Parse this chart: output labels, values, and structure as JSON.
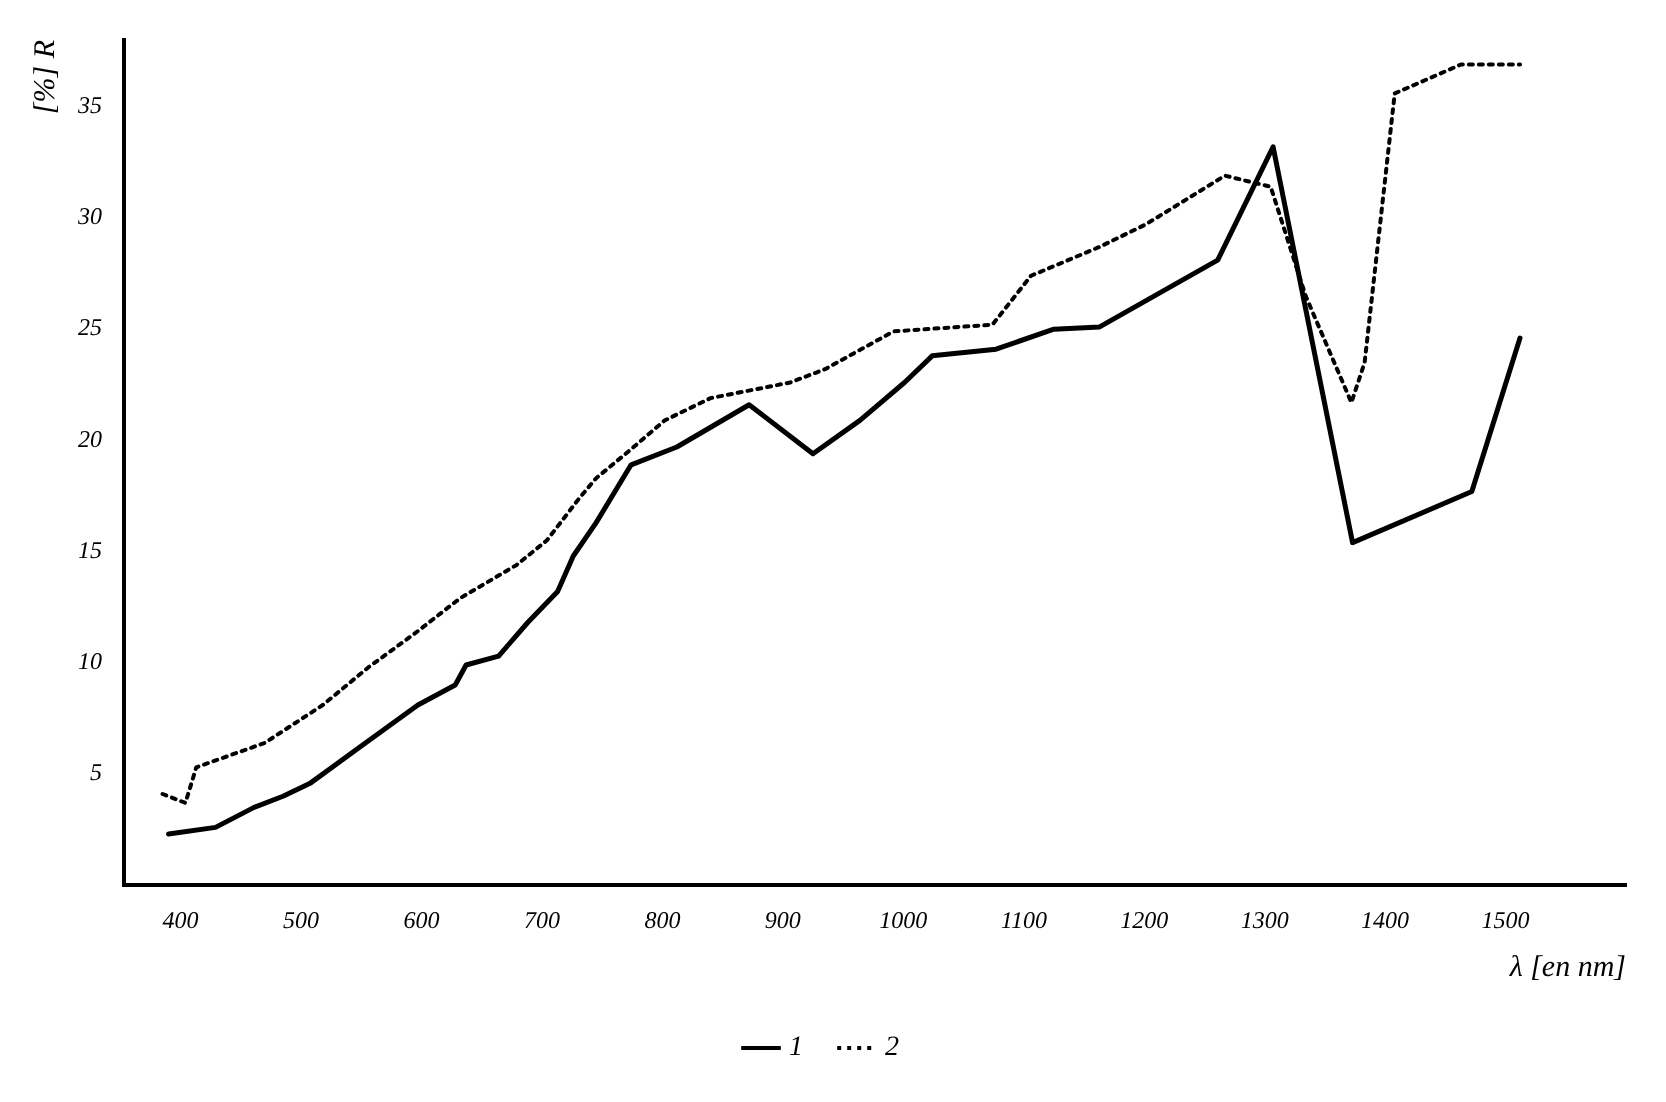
{
  "chart_data": {
    "type": "line",
    "xlabel": "λ [en nm]",
    "ylabel": "[%] R",
    "xlim": [
      353,
      1600
    ],
    "xticks": [
      400,
      500,
      600,
      700,
      800,
      900,
      1000,
      1100,
      1200,
      1300,
      1400,
      1500
    ],
    "ylim": [
      0,
      38
    ],
    "yticks": [
      5,
      10,
      15,
      20,
      25,
      30,
      35
    ],
    "grid": false,
    "legend": "bottom",
    "marker": "none",
    "series": [
      {
        "name": "1",
        "color": "#000000",
        "line_style": "solid",
        "x": [
          390,
          429,
          461,
          485,
          508,
          546,
          597,
          628,
          637,
          664,
          688,
          713,
          726,
          745,
          774,
          812,
          872,
          925,
          964,
          1001,
          1024,
          1077,
          1125,
          1163,
          1261,
          1307,
          1373,
          1472,
          1512
        ],
        "values": [
          2.3,
          2.6,
          3.5,
          4.0,
          4.6,
          6.1,
          8.1,
          9.0,
          9.9,
          10.3,
          11.8,
          13.2,
          14.8,
          16.3,
          18.9,
          19.7,
          21.6,
          19.4,
          20.9,
          22.6,
          23.8,
          24.1,
          25.0,
          25.1,
          28.1,
          33.2,
          15.4,
          17.7,
          24.6
        ]
      },
      {
        "name": "2",
        "color": "#000000",
        "line_style": "dotted",
        "x": [
          385,
          404,
          413,
          470,
          518,
          556,
          594,
          632,
          679,
          704,
          731,
          745,
          774,
          802,
          840,
          906,
          935,
          992,
          1074,
          1106,
          1163,
          1201,
          1267,
          1305,
          1334,
          1372,
          1383,
          1408,
          1463,
          1512
        ],
        "values": [
          4.1,
          3.7,
          5.3,
          6.4,
          8.1,
          9.8,
          11.3,
          12.9,
          14.4,
          15.5,
          17.4,
          18.3,
          19.6,
          20.9,
          21.9,
          22.6,
          23.2,
          24.9,
          25.2,
          27.4,
          28.7,
          29.7,
          31.9,
          31.4,
          26.5,
          21.7,
          23.5,
          35.6,
          36.9,
          36.9
        ]
      }
    ]
  }
}
